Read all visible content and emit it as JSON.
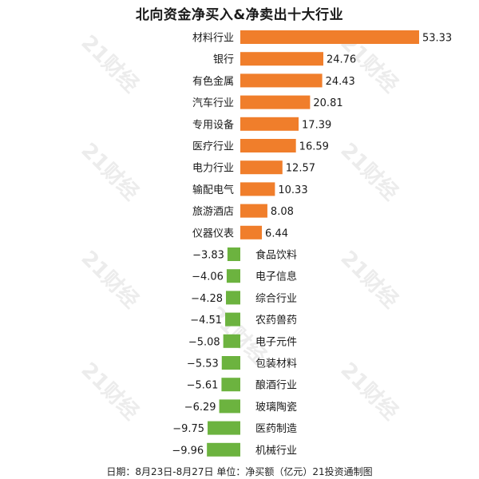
{
  "title": "北向资金净买入&净卖出十大行业",
  "footer": "日期：8月23日-8月27日 单位：净买额（亿元）21投资通制图",
  "watermark": "21财经",
  "chart_data": {
    "type": "bar",
    "orientation": "horizontal",
    "categories": [
      "材料行业",
      "银行",
      "有色金属",
      "汽车行业",
      "专用设备",
      "医疗行业",
      "电力行业",
      "输配电气",
      "旅游酒店",
      "仪器仪表",
      "食品饮料",
      "电子信息",
      "综合行业",
      "农药兽药",
      "电子元件",
      "包装材料",
      "酿酒行业",
      "玻璃陶瓷",
      "医药制造",
      "机械行业"
    ],
    "values": [
      53.33,
      24.76,
      24.43,
      20.81,
      17.39,
      16.59,
      12.57,
      10.33,
      8.08,
      6.44,
      -3.83,
      -4.06,
      -4.28,
      -4.51,
      -5.08,
      -5.53,
      -5.61,
      -6.29,
      -9.75,
      -9.96
    ],
    "value_labels": [
      "53.33",
      "24.76",
      "24.43",
      "20.81",
      "17.39",
      "16.59",
      "12.57",
      "10.33",
      "8.08",
      "6.44",
      "−3.83",
      "−4.06",
      "−4.28",
      "−4.51",
      "−5.08",
      "−5.53",
      "−5.61",
      "−6.29",
      "−9.75",
      "−9.96"
    ],
    "colors": {
      "positive": "#f07e2b",
      "negative": "#6cb33f"
    },
    "grid": false,
    "legend": "none"
  }
}
